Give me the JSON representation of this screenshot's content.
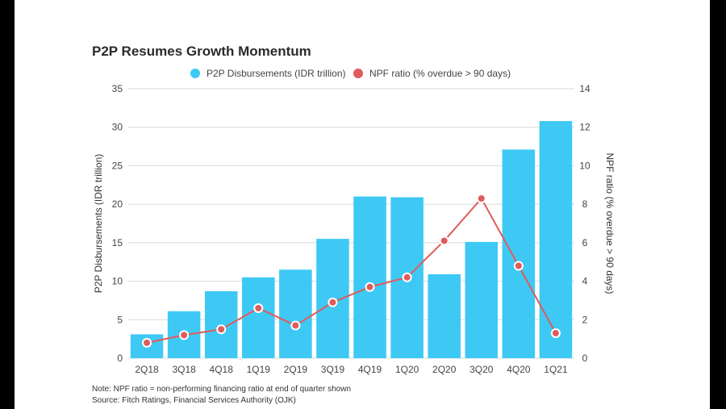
{
  "page": {
    "background": "#000000",
    "card_background": "#ffffff"
  },
  "chart_data": {
    "type": "bar",
    "title": "P2P Resumes Growth Momentum",
    "categories": [
      "2Q18",
      "3Q18",
      "4Q18",
      "1Q19",
      "2Q19",
      "3Q19",
      "4Q19",
      "1Q20",
      "2Q20",
      "3Q20",
      "4Q20",
      "1Q21"
    ],
    "series": [
      {
        "name": "P2P Disbursements (IDR trillion)",
        "type": "bar",
        "axis": "left",
        "color": "#3ec9f5",
        "values": [
          3.1,
          6.1,
          8.7,
          10.5,
          11.5,
          15.5,
          21.0,
          20.9,
          10.9,
          15.1,
          27.1,
          30.8
        ]
      },
      {
        "name": "NPF ratio (% overdue > 90 days)",
        "type": "line",
        "axis": "right",
        "color": "#e05b5b",
        "values": [
          0.8,
          1.2,
          1.5,
          2.6,
          1.7,
          2.9,
          3.7,
          4.2,
          6.1,
          8.3,
          4.8,
          1.3
        ]
      }
    ],
    "ylabel": "P2P Disbursements (IDR trillion)",
    "y2label": "NPF ratio (% overdue > 90 days)",
    "ylim": [
      0,
      35
    ],
    "y2lim": [
      0,
      14
    ],
    "yticks": [
      "0",
      "5",
      "10",
      "15",
      "20",
      "25",
      "30",
      "35"
    ],
    "y2ticks": [
      "0",
      "2",
      "4",
      "6",
      "8",
      "10",
      "12",
      "14"
    ],
    "grid": true,
    "legend_position": "top-center"
  },
  "footer": {
    "note": "Note: NPF ratio = non-performing financing ratio at end of quarter shown",
    "source": "Source: Fitch Ratings, Financial Services Authority (OJK)"
  }
}
